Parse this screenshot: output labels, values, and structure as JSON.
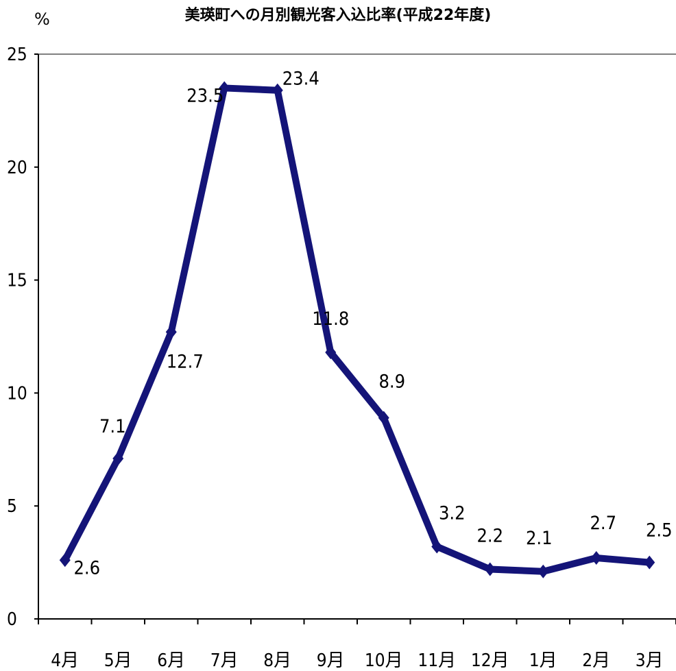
{
  "chart_data": {
    "type": "line",
    "title": "美瑛町への月別観光客入込比率(平成22年度)",
    "unit_label": "%",
    "categories": [
      "4月",
      "5月",
      "6月",
      "7月",
      "8月",
      "9月",
      "10月",
      "11月",
      "12月",
      "1月",
      "2月",
      "3月"
    ],
    "series": [
      {
        "values": [
          2.6,
          7.1,
          12.7,
          23.5,
          23.4,
          11.8,
          8.9,
          3.2,
          2.2,
          2.1,
          2.7,
          2.5
        ]
      }
    ],
    "data_labels": [
      "2.6",
      "7.1",
      "12.7",
      "23.5",
      "23.4",
      "11.8",
      "8.9",
      "3.2",
      "2.2",
      "2.1",
      "2.7",
      "2.5"
    ],
    "yticks": [
      "0",
      "5",
      "10",
      "15",
      "20",
      "25"
    ],
    "ylim": [
      0,
      25
    ],
    "grid": false,
    "legend": "none",
    "line_color": "#141478"
  }
}
